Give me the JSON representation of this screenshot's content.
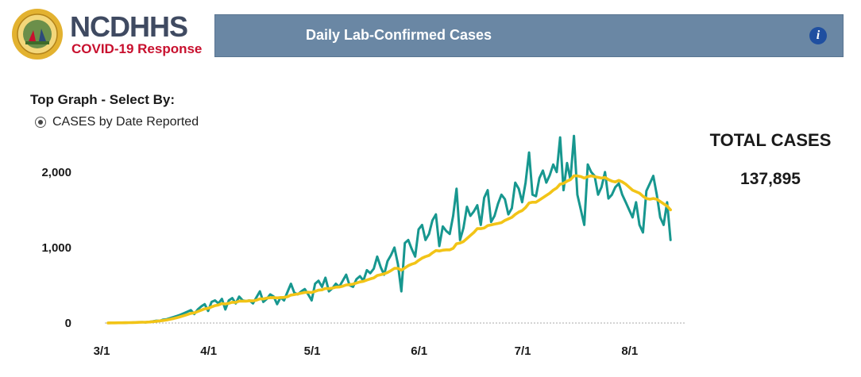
{
  "header": {
    "brand": "NCDHHS",
    "subtitle": "COVID-19 Response",
    "banner_title": "Daily Lab-Confirmed Cases",
    "info_icon": "info-icon",
    "banner_color": "#6a87a4"
  },
  "controls": {
    "select_title": "Top Graph - Select By:",
    "radio_label": "CASES by Date Reported",
    "radio_selected": true
  },
  "summary": {
    "total_label": "TOTAL CASES",
    "total_value": "137,895"
  },
  "chart_data": {
    "type": "line",
    "title": "",
    "xlabel": "",
    "ylabel": "",
    "x_ticks": [
      "3/1",
      "4/1",
      "5/1",
      "6/1",
      "7/1",
      "8/1"
    ],
    "y_ticks": [
      "0",
      "1,000",
      "2,000"
    ],
    "ylim": [
      0,
      2500
    ],
    "x_start": "3/3",
    "series": [
      {
        "color": "#17978f",
        "values": [
          1,
          2,
          3,
          2,
          4,
          3,
          5,
          6,
          8,
          10,
          12,
          8,
          15,
          22,
          30,
          28,
          45,
          50,
          65,
          80,
          95,
          110,
          130,
          150,
          170,
          120,
          180,
          220,
          250,
          160,
          280,
          300,
          260,
          320,
          180,
          300,
          330,
          260,
          350,
          300,
          290,
          300,
          260,
          340,
          420,
          280,
          320,
          380,
          350,
          250,
          340,
          300,
          410,
          520,
          400,
          380,
          420,
          450,
          380,
          300,
          520,
          560,
          480,
          600,
          420,
          460,
          520,
          480,
          560,
          640,
          500,
          480,
          580,
          620,
          560,
          700,
          660,
          720,
          880,
          740,
          640,
          820,
          900,
          1000,
          780,
          420,
          1060,
          1100,
          980,
          880,
          1240,
          1300,
          1100,
          1180,
          1360,
          1440,
          1020,
          1280,
          1220,
          1180,
          1420,
          1780,
          1100,
          1260,
          1540,
          1420,
          1480,
          1560,
          1300,
          1660,
          1760,
          1340,
          1420,
          1580,
          1700,
          1640,
          1440,
          1520,
          1860,
          1780,
          1600,
          1860,
          2260,
          1700,
          1680,
          1920,
          2020,
          1860,
          1960,
          2100,
          2000,
          2460,
          1760,
          2120,
          1900,
          2480,
          1700,
          1500,
          1300,
          2100,
          2000,
          1950,
          1700,
          1800,
          2000,
          1650,
          1700,
          1800,
          1850,
          1700,
          1600,
          1500,
          1400,
          1600,
          1300,
          1200,
          1750,
          1850,
          1950,
          1700,
          1400,
          1300,
          1600,
          1100
        ]
      },
      {
        "color": "#f2c417",
        "values": [
          1,
          2,
          2,
          3,
          3,
          4,
          5,
          6,
          7,
          9,
          11,
          12,
          14,
          18,
          23,
          28,
          34,
          41,
          50,
          60,
          71,
          84,
          98,
          113,
          128,
          135,
          152,
          170,
          188,
          195,
          213,
          230,
          240,
          258,
          252,
          262,
          275,
          273,
          290,
          290,
          290,
          295,
          293,
          303,
          320,
          320,
          330,
          335,
          338,
          333,
          338,
          340,
          348,
          370,
          378,
          385,
          395,
          405,
          408,
          405,
          420,
          435,
          440,
          458,
          455,
          463,
          475,
          477,
          488,
          505,
          508,
          515,
          530,
          545,
          552,
          570,
          585,
          598,
          630,
          640,
          652,
          670,
          695,
          725,
          725,
          700,
          730,
          760,
          780,
          795,
          830,
          860,
          880,
          895,
          930,
          960,
          955,
          965,
          970,
          970,
          990,
          1050,
          1060,
          1080,
          1120,
          1160,
          1200,
          1250,
          1250,
          1260,
          1290,
          1300,
          1310,
          1320,
          1330,
          1360,
          1380,
          1400,
          1440,
          1470,
          1490,
          1530,
          1590,
          1600,
          1600,
          1630,
          1660,
          1690,
          1720,
          1760,
          1790,
          1840,
          1850,
          1880,
          1900,
          1950,
          1950,
          1940,
          1920,
          1940,
          1950,
          1940,
          1930,
          1920,
          1930,
          1900,
          1880,
          1870,
          1890,
          1870,
          1840,
          1800,
          1760,
          1740,
          1720,
          1680,
          1650,
          1640,
          1650,
          1640,
          1610,
          1580,
          1550,
          1500
        ]
      }
    ]
  }
}
